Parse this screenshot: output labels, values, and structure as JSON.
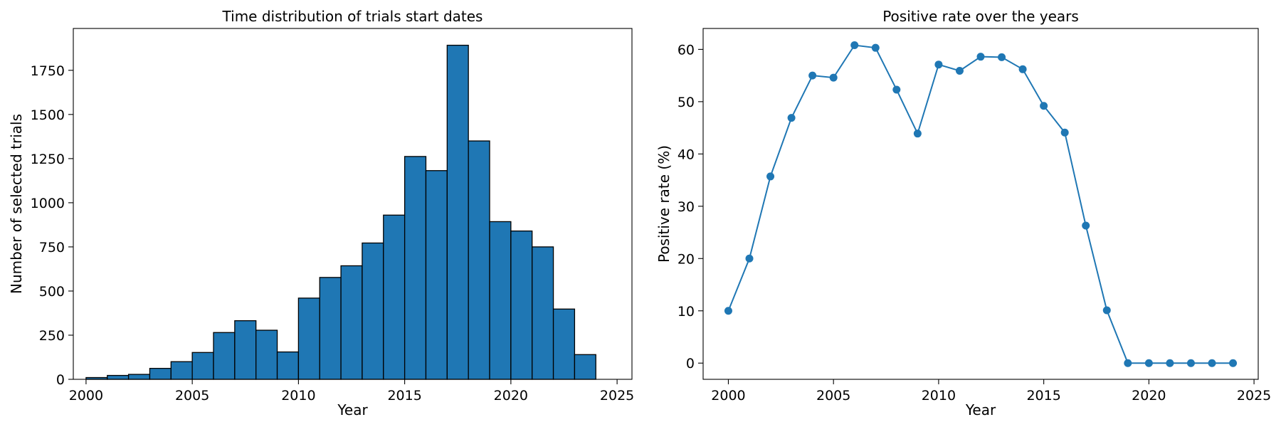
{
  "chart_data": [
    {
      "type": "bar",
      "title": "Time distribution of trials start dates",
      "xlabel": "Year",
      "ylabel": "Number of selected trials",
      "x": [
        2000,
        2001,
        2002,
        2003,
        2004,
        2005,
        2006,
        2007,
        2008,
        2009,
        2010,
        2011,
        2012,
        2013,
        2014,
        2015,
        2016,
        2017,
        2018,
        2019,
        2020,
        2021,
        2022,
        2023
      ],
      "values": [
        10,
        22,
        28,
        62,
        100,
        152,
        265,
        332,
        278,
        155,
        460,
        577,
        643,
        772,
        930,
        1262,
        1182,
        1892,
        1350,
        893,
        840,
        750,
        398,
        140
      ],
      "xlim": [
        1999.4,
        2025.7
      ],
      "ylim": [
        0,
        1987
      ],
      "xticks": [
        2000,
        2005,
        2010,
        2015,
        2020,
        2025
      ],
      "yticks": [
        0,
        250,
        500,
        750,
        1000,
        1250,
        1500,
        1750
      ],
      "bar_color": "#1f77b4",
      "edge_color": "#000000",
      "grid": false
    },
    {
      "type": "line",
      "title": "Positive rate over the years",
      "xlabel": "Year",
      "ylabel": "Positive rate (%)",
      "x": [
        2000,
        2001,
        2002,
        2003,
        2004,
        2005,
        2006,
        2007,
        2008,
        2009,
        2010,
        2011,
        2012,
        2013,
        2014,
        2015,
        2016,
        2017,
        2018,
        2019,
        2020,
        2021,
        2022,
        2023,
        2024
      ],
      "values": [
        10.0,
        20.0,
        35.7,
        46.9,
        55.0,
        54.6,
        60.8,
        60.3,
        52.3,
        43.9,
        57.1,
        55.9,
        58.6,
        58.5,
        56.2,
        49.2,
        44.1,
        26.3,
        10.1,
        0,
        0,
        0,
        0,
        0,
        0
      ],
      "xlim": [
        1998.8,
        2025.2
      ],
      "ylim": [
        -3.1,
        64.0
      ],
      "xticks": [
        2000,
        2005,
        2010,
        2015,
        2020,
        2025
      ],
      "yticks": [
        0,
        10,
        20,
        30,
        40,
        50,
        60
      ],
      "line_color": "#1f77b4",
      "marker": "circle",
      "grid": false
    }
  ]
}
